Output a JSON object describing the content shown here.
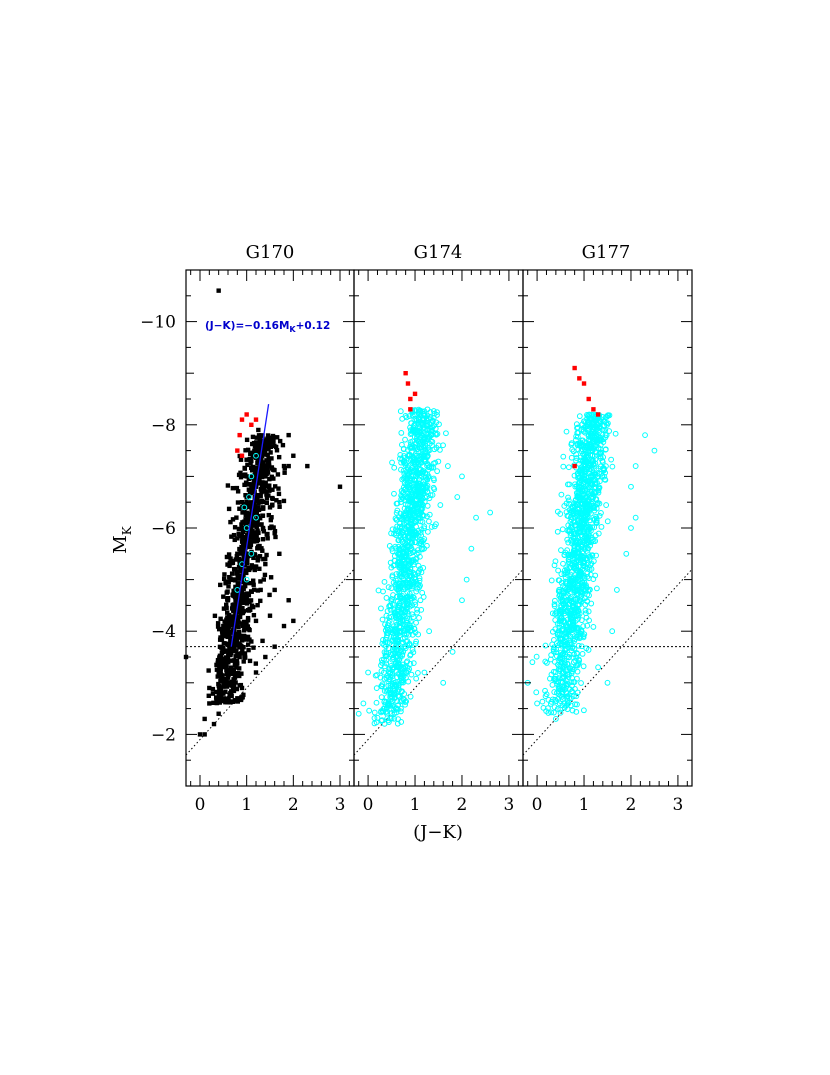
{
  "chart_data": [
    {
      "type": "scatter",
      "title": "G170",
      "xlabel": "(J−K)",
      "ylabel": "M_K",
      "xlim": [
        -0.3,
        3.3
      ],
      "ylim": [
        -1,
        -11
      ],
      "x_ticks": [
        0,
        1,
        2,
        3
      ],
      "y_ticks": [
        -2,
        -4,
        -6,
        -8,
        -10
      ],
      "annotation": "(J−K)=−0.16M",
      "annotation_sub": "K",
      "annotation_tail": "+0.12",
      "reference_lines": {
        "horizontal_y": -3.7,
        "diagonal": [
          [
            -0.3,
            -1.6
          ],
          [
            3.3,
            -5.2
          ]
        ],
        "fit": [
          [
            0.67,
            -3.7
          ],
          [
            1.47,
            -8.4
          ]
        ]
      },
      "series": [
        {
          "color": "#000000",
          "marker": "filled-square",
          "points": [
            [
              0.4,
              -10.6
            ],
            [
              -0.3,
              -3.5
            ],
            [
              3.0,
              -6.8
            ],
            [
              0.0,
              -2.0
            ],
            [
              0.1,
              -2.0
            ],
            [
              0.1,
              -2.3
            ],
            [
              0.3,
              -2.2
            ],
            [
              0.2,
              -2.6
            ],
            [
              0.4,
              -2.4
            ],
            [
              0.5,
              -2.8
            ],
            [
              0.6,
              -3.1
            ],
            [
              1.6,
              -3.7
            ],
            [
              1.8,
              -4.1
            ],
            [
              1.9,
              -4.6
            ],
            [
              1.6,
              -4.8
            ],
            [
              2.0,
              -4.2
            ],
            [
              1.7,
              -5.5
            ],
            [
              1.6,
              -5.9
            ],
            [
              1.9,
              -7.2
            ],
            [
              2.3,
              -7.2
            ],
            [
              2.0,
              -7.4
            ],
            [
              1.9,
              -7.8
            ],
            [
              1.8,
              -7.2
            ],
            [
              1.7,
              -6.5
            ],
            [
              1.5,
              -6.0
            ],
            [
              1.5,
              -4.3
            ],
            [
              1.4,
              -3.5
            ],
            [
              1.2,
              -3.2
            ],
            [
              0.9,
              -2.9
            ],
            [
              0.8,
              -2.7
            ],
            [
              0.2,
              -2.9
            ],
            [
              0.4,
              -3.2
            ],
            [
              0.5,
              -3.6
            ],
            [
              0.6,
              -4.0
            ],
            [
              0.7,
              -4.5
            ],
            [
              0.75,
              -5.2
            ],
            [
              0.8,
              -5.8
            ],
            [
              0.9,
              -6.5
            ],
            [
              1.0,
              -7.0
            ],
            [
              1.1,
              -7.3
            ],
            [
              1.2,
              -7.6
            ],
            [
              1.25,
              -7.9
            ],
            [
              1.3,
              -7.5
            ],
            [
              1.2,
              -6.8
            ],
            [
              1.1,
              -6.2
            ],
            [
              1.0,
              -5.5
            ],
            [
              0.9,
              -4.8
            ],
            [
              0.8,
              -4.2
            ],
            [
              0.7,
              -3.8
            ],
            [
              0.6,
              -3.4
            ],
            [
              1.3,
              -6.5
            ],
            [
              1.4,
              -7.0
            ],
            [
              1.35,
              -6.0
            ],
            [
              1.25,
              -5.4
            ],
            [
              1.15,
              -4.9
            ],
            [
              1.05,
              -4.4
            ],
            [
              0.95,
              -3.9
            ],
            [
              0.85,
              -3.5
            ],
            [
              0.75,
              -3.1
            ],
            [
              0.65,
              -2.8
            ],
            [
              1.1,
              -3.8
            ],
            [
              1.2,
              -4.2
            ],
            [
              1.3,
              -4.8
            ],
            [
              1.4,
              -5.3
            ],
            [
              1.45,
              -5.8
            ],
            [
              1.5,
              -6.4
            ],
            [
              0.5,
              -4.1
            ],
            [
              0.6,
              -4.6
            ],
            [
              0.7,
              -5.0
            ],
            [
              0.8,
              -5.5
            ],
            [
              0.9,
              -6.0
            ],
            [
              1.0,
              -6.6
            ]
          ]
        },
        {
          "color": "#00ffff",
          "marker": "open-circle",
          "points": [
            [
              1.0,
              -5.0
            ],
            [
              1.1,
              -5.5
            ],
            [
              1.0,
              -6.0
            ],
            [
              0.95,
              -6.4
            ],
            [
              1.05,
              -6.6
            ],
            [
              1.2,
              -6.2
            ],
            [
              0.9,
              -5.3
            ],
            [
              0.8,
              -4.8
            ],
            [
              1.1,
              -7.0
            ],
            [
              1.2,
              -7.4
            ]
          ]
        },
        {
          "color": "#ff0000",
          "marker": "filled-square",
          "points": [
            [
              0.9,
              -8.1
            ],
            [
              1.0,
              -8.2
            ],
            [
              1.1,
              -8.0
            ],
            [
              1.2,
              -8.1
            ],
            [
              0.85,
              -7.8
            ],
            [
              0.8,
              -7.5
            ],
            [
              0.9,
              -7.4
            ]
          ]
        }
      ]
    },
    {
      "type": "scatter",
      "title": "G174",
      "xlabel": "(J−K)",
      "xlim": [
        -0.3,
        3.3
      ],
      "ylim": [
        -1,
        -11
      ],
      "x_ticks": [
        0,
        1,
        2,
        3
      ],
      "y_ticks": [
        -2,
        -4,
        -6,
        -8,
        -10
      ],
      "reference_lines": {
        "horizontal_y": -3.7,
        "diagonal": [
          [
            -0.3,
            -1.6
          ],
          [
            3.3,
            -5.2
          ]
        ]
      },
      "series": [
        {
          "color": "#00ffff",
          "marker": "open-circle",
          "band": {
            "x_at_y3": 0.55,
            "x_at_y8": 1.15,
            "y_range": [
              -2.2,
              -8.3
            ],
            "n": 1300,
            "spread": 0.18,
            "seed": 174
          },
          "points": [
            [
              -0.2,
              -2.4
            ],
            [
              -0.1,
              -2.6
            ],
            [
              0.0,
              -3.2
            ],
            [
              2.6,
              -6.3
            ],
            [
              2.3,
              -6.2
            ],
            [
              2.2,
              -5.6
            ],
            [
              2.1,
              -5.0
            ],
            [
              2.0,
              -4.6
            ],
            [
              1.8,
              -3.6
            ],
            [
              1.9,
              -6.6
            ],
            [
              2.0,
              -7.0
            ],
            [
              1.6,
              -3.0
            ],
            [
              1.2,
              -3.2
            ],
            [
              1.3,
              -4.0
            ],
            [
              1.5,
              -7.6
            ],
            [
              1.7,
              -7.2
            ]
          ]
        },
        {
          "color": "#ff0000",
          "marker": "filled-square",
          "points": [
            [
              0.8,
              -9.0
            ],
            [
              0.85,
              -8.8
            ],
            [
              0.9,
              -8.5
            ],
            [
              1.0,
              -8.6
            ],
            [
              0.9,
              -8.3
            ]
          ]
        }
      ]
    },
    {
      "type": "scatter",
      "title": "G177",
      "xlabel": "(J−K)",
      "xlim": [
        -0.3,
        3.3
      ],
      "ylim": [
        -1,
        -11
      ],
      "x_ticks": [
        0,
        1,
        2,
        3
      ],
      "y_ticks": [
        -2,
        -4,
        -6,
        -8,
        -10
      ],
      "reference_lines": {
        "horizontal_y": -3.7,
        "diagonal": [
          [
            -0.3,
            -1.6
          ],
          [
            3.3,
            -5.2
          ]
        ]
      },
      "series": [
        {
          "color": "#00ffff",
          "marker": "open-circle",
          "band": {
            "x_at_y3": 0.55,
            "x_at_y8": 1.2,
            "y_range": [
              -2.4,
              -8.2
            ],
            "n": 1300,
            "spread": 0.19,
            "seed": 177
          },
          "points": [
            [
              -0.2,
              -3.0
            ],
            [
              -0.1,
              -3.4
            ],
            [
              0.0,
              -2.6
            ],
            [
              0.4,
              -2.3
            ],
            [
              2.5,
              -7.5
            ],
            [
              2.3,
              -7.8
            ],
            [
              2.1,
              -7.2
            ],
            [
              2.0,
              -6.8
            ],
            [
              2.1,
              -6.2
            ],
            [
              1.7,
              -4.8
            ],
            [
              1.9,
              -5.5
            ],
            [
              2.0,
              -6.0
            ],
            [
              1.5,
              -3.0
            ],
            [
              1.3,
              -3.3
            ],
            [
              1.6,
              -4.0
            ]
          ]
        },
        {
          "color": "#ff0000",
          "marker": "filled-square",
          "points": [
            [
              0.8,
              -9.1
            ],
            [
              0.9,
              -8.9
            ],
            [
              1.0,
              -8.8
            ],
            [
              1.1,
              -8.5
            ],
            [
              1.2,
              -8.3
            ],
            [
              1.3,
              -8.2
            ],
            [
              0.8,
              -7.2
            ]
          ]
        }
      ]
    }
  ]
}
